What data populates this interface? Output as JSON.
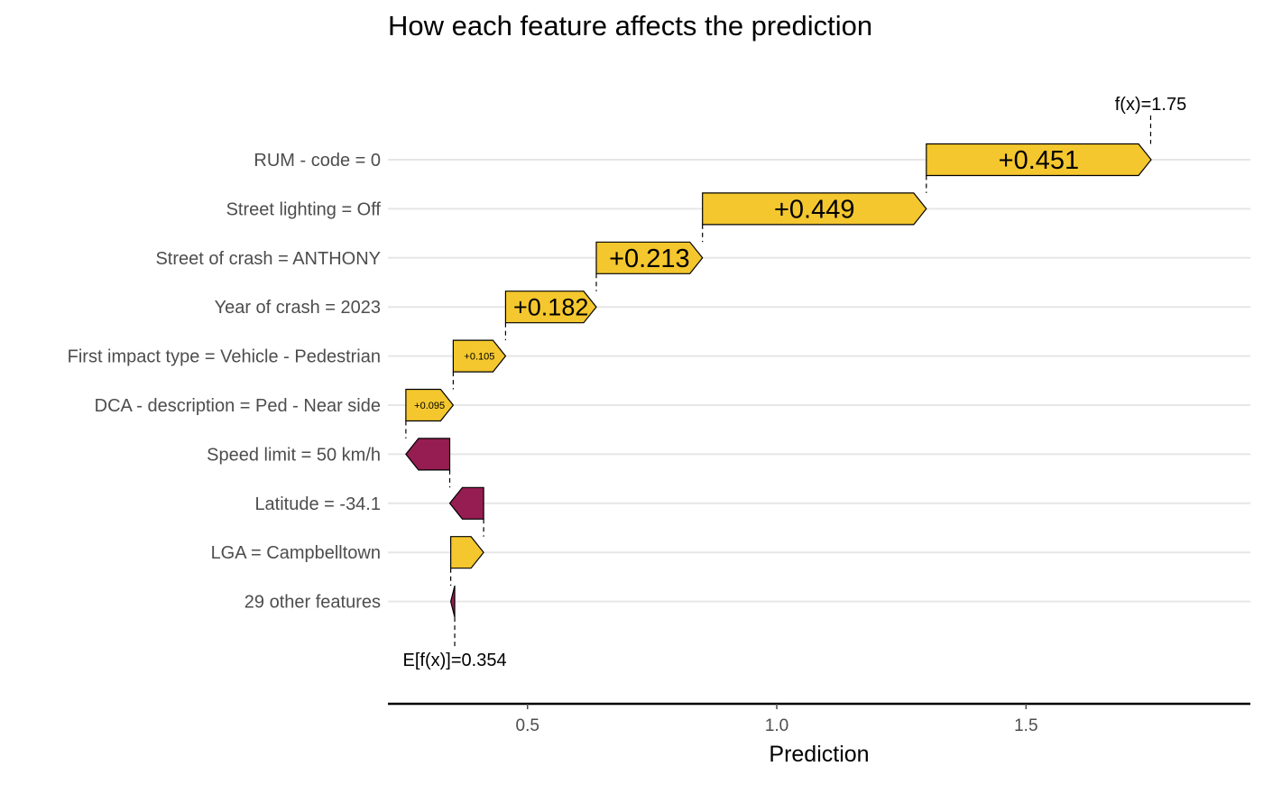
{
  "chart_data": {
    "type": "waterfall",
    "title": "How each feature affects the prediction",
    "xlabel": "Prediction",
    "xlim": [
      0.22,
      1.95
    ],
    "xticks": [
      0.5,
      1.0,
      1.5
    ],
    "xtick_labels": [
      "0.5",
      "1.0",
      "1.5"
    ],
    "base_value": 0.354,
    "base_label": "E[f(x)]=0.354",
    "final_value": 1.75,
    "final_label": "f(x)=1.75",
    "grid": "horizontal-major",
    "colors": {
      "positive": "#F4C72E",
      "negative": "#951D51",
      "outline": "#000000"
    },
    "features": [
      {
        "label": "RUM - code = 0",
        "contribution": 0.451,
        "value_label": "+0.451"
      },
      {
        "label": "Street lighting = Off",
        "contribution": 0.449,
        "value_label": "+0.449"
      },
      {
        "label": "Street of crash = ANTHONY",
        "contribution": 0.213,
        "value_label": "+0.213"
      },
      {
        "label": "Year of crash = 2023",
        "contribution": 0.182,
        "value_label": "+0.182"
      },
      {
        "label": "First impact type = Vehicle - Pedestrian",
        "contribution": 0.105,
        "value_label": "+0.105"
      },
      {
        "label": "DCA - description = Ped - Near side",
        "contribution": 0.095,
        "value_label": "+0.095"
      },
      {
        "label": "Speed limit = 50 km/h",
        "contribution": -0.088,
        "value_label": ""
      },
      {
        "label": "Latitude = -34.1",
        "contribution": -0.068,
        "value_label": ""
      },
      {
        "label": "LGA = Campbelltown",
        "contribution": 0.066,
        "value_label": ""
      },
      {
        "label": "29 other features",
        "contribution": -0.008,
        "value_label": ""
      }
    ]
  }
}
